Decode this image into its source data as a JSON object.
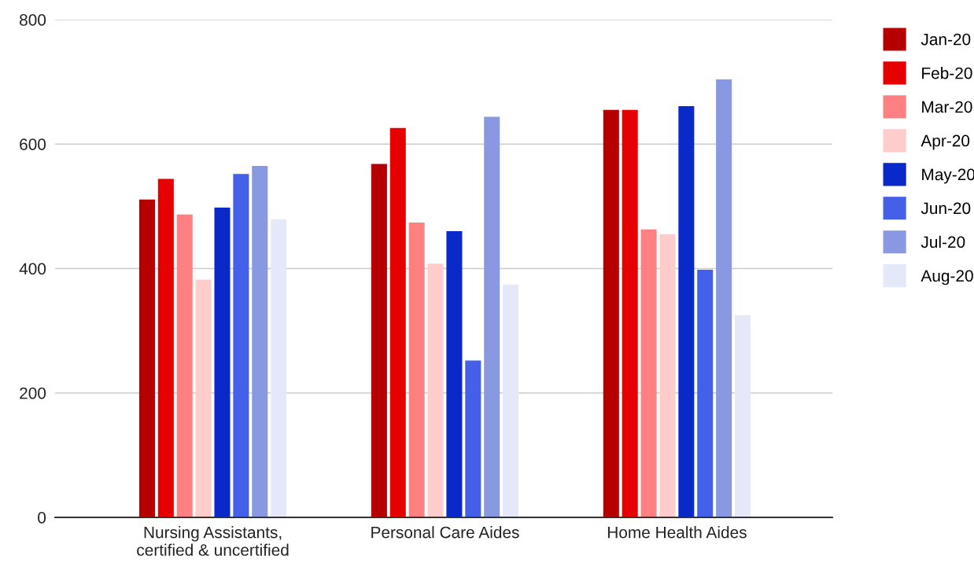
{
  "chart_data": {
    "type": "bar",
    "categories": [
      "Nursing Assistants,\ncertified & uncertified",
      "Personal Care Aides",
      "Home Health Aides"
    ],
    "series": [
      {
        "name": "Jan-20",
        "color": "#b60000",
        "values": [
          511,
          568,
          655
        ]
      },
      {
        "name": "Feb-20",
        "color": "#e60000",
        "values": [
          544,
          626,
          655
        ]
      },
      {
        "name": "Mar-20",
        "color": "#ff8080",
        "values": [
          487,
          474,
          463
        ]
      },
      {
        "name": "Apr-20",
        "color": "#ffcccc",
        "values": [
          382,
          408,
          455
        ]
      },
      {
        "name": "May-20",
        "color": "#0a29c9",
        "values": [
          498,
          460,
          661
        ]
      },
      {
        "name": "Jun-20",
        "color": "#4560e8",
        "values": [
          552,
          252,
          398
        ]
      },
      {
        "name": "Jul-20",
        "color": "#8899e2",
        "values": [
          565,
          644,
          704
        ]
      },
      {
        "name": "Aug-20",
        "color": "#e5e8f8",
        "values": [
          479,
          374,
          325
        ]
      }
    ],
    "ylim": [
      0,
      800
    ],
    "yticks": [
      0,
      200,
      400,
      600,
      800
    ],
    "grid": "y",
    "legend": "right"
  }
}
